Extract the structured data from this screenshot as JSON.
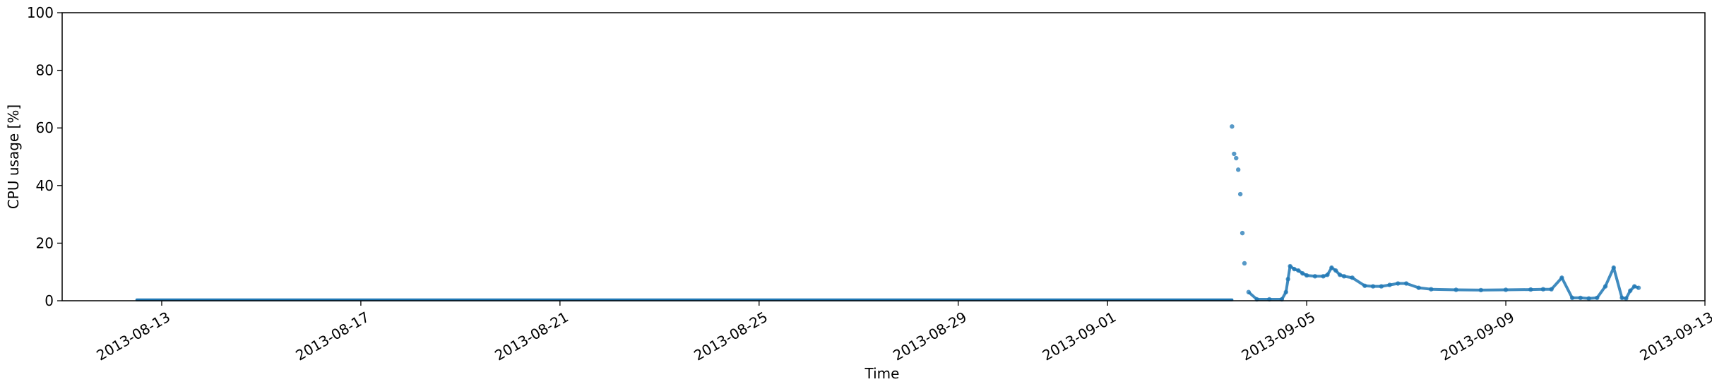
{
  "chart_data": {
    "type": "scatter",
    "title": "",
    "xlabel": "Time",
    "ylabel": "CPU usage [%]",
    "xlim": [
      "2013-08-11",
      "2013-09-13"
    ],
    "ylim": [
      0,
      100
    ],
    "grid": false,
    "legend": "none",
    "colors": {
      "points": "#1f77b4",
      "axis": "#000000",
      "background": "#ffffff"
    },
    "y_ticks": [
      0,
      20,
      40,
      60,
      80,
      100
    ],
    "x_ticks": [
      "2013-08-13",
      "2013-08-17",
      "2013-08-21",
      "2013-08-25",
      "2013-08-29",
      "2013-09-01",
      "2013-09-05",
      "2013-09-09",
      "2013-09-13"
    ],
    "series": [
      {
        "marker": "dot",
        "baseline": {
          "x_start": "2013-08-12 12:00",
          "x_end": "2013-09-03 12:00",
          "y": 0.3
        },
        "x": [
          "2013-09-03 12:00",
          "2013-09-03 13:00",
          "2013-09-03 14:00",
          "2013-09-03 15:00",
          "2013-09-03 16:00",
          "2013-09-03 17:00",
          "2013-09-03 18:00",
          "2013-09-03 20:00",
          "2013-09-04 00:00",
          "2013-09-04 06:00",
          "2013-09-04 12:00",
          "2013-09-04 14:00",
          "2013-09-04 15:00",
          "2013-09-04 16:00",
          "2013-09-04 18:00",
          "2013-09-04 20:00",
          "2013-09-04 22:00",
          "2013-09-05 00:00",
          "2013-09-05 04:00",
          "2013-09-05 08:00",
          "2013-09-05 10:00",
          "2013-09-05 12:00",
          "2013-09-05 14:00",
          "2013-09-05 16:00",
          "2013-09-05 18:00",
          "2013-09-05 22:00",
          "2013-09-06 04:00",
          "2013-09-06 08:00",
          "2013-09-06 12:00",
          "2013-09-06 16:00",
          "2013-09-06 20:00",
          "2013-09-07 00:00",
          "2013-09-07 06:00",
          "2013-09-07 12:00",
          "2013-09-08 00:00",
          "2013-09-08 12:00",
          "2013-09-09 00:00",
          "2013-09-09 12:00",
          "2013-09-09 18:00",
          "2013-09-09 22:00",
          "2013-09-10 03:00",
          "2013-09-10 08:00",
          "2013-09-10 12:00",
          "2013-09-10 16:00",
          "2013-09-10 20:00",
          "2013-09-11 00:00",
          "2013-09-11 04:00",
          "2013-09-11 08:00",
          "2013-09-11 10:00",
          "2013-09-11 12:00",
          "2013-09-11 14:00",
          "2013-09-11 16:00"
        ],
        "y": [
          60.5,
          51,
          49.5,
          45.5,
          37,
          23.5,
          13,
          3,
          0.5,
          0.5,
          0.5,
          3,
          7.5,
          12,
          11,
          10.5,
          9.5,
          8.8,
          8.5,
          8.5,
          9,
          11.5,
          10.5,
          9,
          8.5,
          8,
          5.2,
          5,
          5,
          5.5,
          6,
          6,
          4.5,
          4,
          3.8,
          3.7,
          3.8,
          3.9,
          4,
          4,
          8,
          1,
          1,
          0.8,
          1,
          5,
          11.5,
          1,
          0.8,
          3.5,
          5,
          4.5
        ]
      }
    ]
  }
}
